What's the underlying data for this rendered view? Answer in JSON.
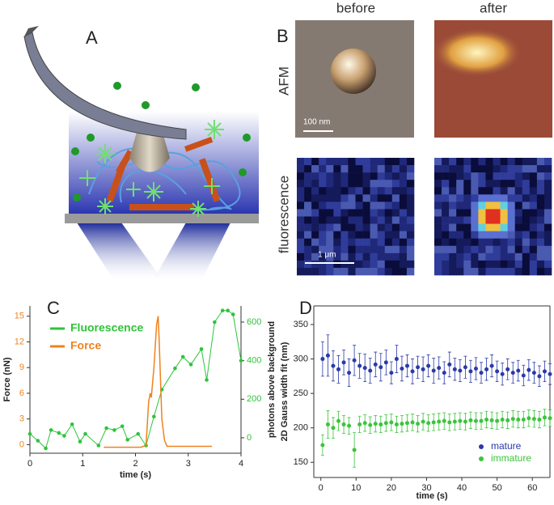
{
  "panel_labels": [
    "A",
    "B",
    "C",
    "D"
  ],
  "imaging": {
    "columns": [
      "before",
      "after"
    ],
    "rows": [
      "AFM",
      "fluorescence"
    ],
    "scalebars": [
      "100 nm",
      "1 μm"
    ]
  },
  "chart_data": [
    {
      "type": "line",
      "xlabel": "time (s)",
      "ylabel": "Force (nN)",
      "y2label": "photons above background",
      "xlim": [
        0,
        4
      ],
      "xticks": [
        0,
        1,
        2,
        3,
        4
      ],
      "ylim": [
        -1,
        16.2
      ],
      "yticks": [
        0,
        3,
        6,
        9,
        12,
        15
      ],
      "y2lim": [
        -80,
        684
      ],
      "y2ticks": [
        0,
        200,
        400,
        600
      ],
      "legend": "upper left",
      "series": [
        {
          "name": "Fluorescence",
          "color": "#2ec43a",
          "axis": "y2",
          "markers": true,
          "x": [
            0,
            0.15,
            0.3,
            0.4,
            0.55,
            0.65,
            0.8,
            0.95,
            1.05,
            1.3,
            1.45,
            1.6,
            1.75,
            1.85,
            2.05,
            2.2,
            2.35,
            2.5,
            2.75,
            2.9,
            3.05,
            3.25,
            3.35,
            3.5,
            3.65,
            3.75,
            3.85,
            4.0
          ],
          "values": [
            20,
            -15,
            -55,
            40,
            25,
            10,
            70,
            -20,
            20,
            -40,
            50,
            40,
            60,
            -10,
            20,
            -40,
            110,
            250,
            360,
            420,
            380,
            460,
            300,
            600,
            660,
            660,
            640,
            400
          ]
        },
        {
          "name": "Force",
          "color": "#f0821e",
          "axis": "y",
          "markers": false,
          "x": [
            1.4,
            2.1,
            2.2,
            2.25,
            2.28,
            2.3,
            2.35,
            2.4,
            2.43,
            2.45,
            2.5,
            2.55,
            2.6,
            3.45
          ],
          "values": [
            -0.3,
            -0.3,
            -0.1,
            5,
            6,
            5.5,
            9,
            14,
            15,
            12,
            3,
            0.5,
            -0.2,
            -0.2
          ]
        }
      ]
    },
    {
      "type": "scatter",
      "xlabel": "time (s)",
      "ylabel": "2D Gauss width fit (nm)",
      "xlim": [
        -2,
        65
      ],
      "xticks": [
        0,
        10,
        20,
        30,
        40,
        50,
        60
      ],
      "ylim": [
        128,
        377
      ],
      "yticks": [
        150,
        200,
        250,
        300,
        350
      ],
      "legend": "lower right",
      "x": [
        0.5,
        2,
        3.5,
        5,
        6.5,
        8,
        9.5,
        11,
        12.5,
        14,
        15.5,
        17,
        18.5,
        20,
        21.5,
        23,
        24.5,
        26,
        27.5,
        29,
        30.5,
        32,
        33.5,
        35,
        36.5,
        38,
        39.5,
        41,
        42.5,
        44,
        45.5,
        47,
        48.5,
        50,
        51.5,
        53,
        54.5,
        56,
        57.5,
        59,
        60.5,
        62,
        63.5,
        65
      ],
      "series": [
        {
          "name": "mature",
          "color": "#2b3aa8",
          "values": [
            300,
            305,
            290,
            285,
            295,
            280,
            298,
            290,
            287,
            283,
            292,
            288,
            295,
            280,
            300,
            286,
            290,
            282,
            288,
            285,
            290,
            283,
            287,
            280,
            292,
            285,
            283,
            288,
            282,
            286,
            280,
            285,
            290,
            282,
            278,
            285,
            280,
            283,
            276,
            284,
            280,
            275,
            282,
            278
          ],
          "errors": [
            25,
            30,
            22,
            20,
            18,
            20,
            22,
            18,
            20,
            18,
            18,
            20,
            18,
            16,
            20,
            18,
            16,
            18,
            16,
            18,
            16,
            18,
            16,
            16,
            18,
            16,
            16,
            16,
            16,
            16,
            15,
            16,
            16,
            15,
            16,
            15,
            15,
            15,
            15,
            15,
            15,
            15,
            15,
            15
          ]
        },
        {
          "name": "immature",
          "color": "#3cc43c",
          "values": [
            175,
            205,
            200,
            210,
            205,
            203,
            168,
            205,
            207,
            204,
            206,
            205,
            207,
            208,
            205,
            206,
            207,
            208,
            206,
            209,
            207,
            208,
            209,
            210,
            208,
            209,
            210,
            209,
            211,
            210,
            210,
            212,
            211,
            210,
            212,
            211,
            213,
            212,
            212,
            214,
            213,
            212,
            215,
            214
          ],
          "errors": [
            15,
            20,
            15,
            14,
            13,
            12,
            25,
            12,
            12,
            12,
            12,
            12,
            12,
            12,
            12,
            12,
            12,
            12,
            12,
            12,
            12,
            12,
            12,
            12,
            12,
            12,
            12,
            12,
            12,
            12,
            12,
            12,
            12,
            12,
            12,
            12,
            12,
            12,
            12,
            12,
            12,
            12,
            12,
            12
          ]
        }
      ]
    }
  ]
}
